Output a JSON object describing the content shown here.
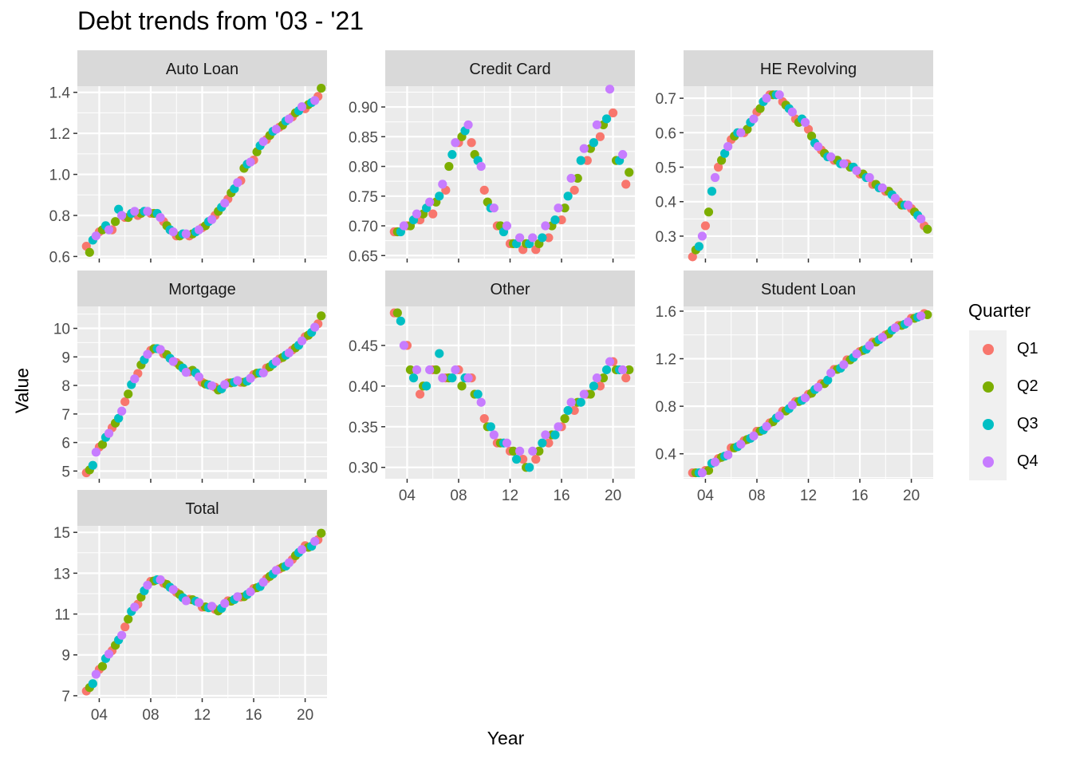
{
  "chart_data": {
    "type": "scatter",
    "title": "Debt trends from '03 - '21",
    "xlabel": "Year",
    "ylabel": "Value",
    "legend": {
      "title": "Quarter",
      "position": "right"
    },
    "series_colors": {
      "Q1": "#F8766D",
      "Q2": "#7CAE00",
      "Q3": "#00BFC4",
      "Q4": "#C77CFF"
    },
    "panel_background": "#EBEBEB",
    "strip_background": "#D9D9D9",
    "grid": true,
    "x_ticks": [
      4,
      8,
      12,
      16,
      20
    ],
    "x_tick_labels": [
      "04",
      "08",
      "12",
      "16",
      "20"
    ],
    "xlim": [
      2.3,
      21.7
    ],
    "years": [
      3,
      4,
      5,
      6,
      7,
      8,
      9,
      10,
      11,
      12,
      13,
      14,
      15,
      16,
      17,
      18,
      19,
      20,
      21
    ],
    "facets": [
      {
        "name": "Auto Loan",
        "ylim": [
          0.59,
          1.43
        ],
        "y_ticks": [
          0.6,
          0.8,
          1.0,
          1.2,
          1.4
        ],
        "y_tick_labels": [
          "0.6",
          "0.8",
          "1.0",
          "1.2",
          "1.4"
        ],
        "series": [
          {
            "name": "Q1",
            "values": [
              0.65,
              0.72,
              0.73,
              0.79,
              0.8,
              0.81,
              0.77,
              0.7,
              0.7,
              0.74,
              0.8,
              0.88,
              0.97,
              1.07,
              1.17,
              1.23,
              1.28,
              1.32,
              1.38
            ]
          },
          {
            "name": "Q2",
            "values": [
              0.62,
              0.73,
              0.77,
              0.79,
              0.81,
              0.81,
              0.75,
              0.7,
              0.71,
              0.75,
              0.82,
              0.91,
              1.03,
              1.11,
              1.19,
              1.24,
              1.3,
              1.34,
              1.42
            ]
          },
          {
            "name": "Q3",
            "values": [
              0.68,
              0.75,
              0.83,
              0.81,
              0.82,
              0.81,
              0.73,
              0.71,
              0.72,
              0.77,
              0.84,
              0.93,
              1.05,
              1.14,
              1.21,
              1.26,
              1.31,
              1.35,
              null
            ]
          },
          {
            "name": "Q4",
            "values": [
              0.7,
              0.73,
              0.8,
              0.82,
              0.82,
              0.79,
              0.72,
              0.71,
              0.73,
              0.78,
              0.86,
              0.96,
              1.06,
              1.16,
              1.22,
              1.27,
              1.33,
              1.36,
              null
            ]
          }
        ]
      },
      {
        "name": "Credit Card",
        "ylim": [
          0.645,
          0.935
        ],
        "y_ticks": [
          0.65,
          0.7,
          0.75,
          0.8,
          0.85,
          0.9
        ],
        "y_tick_labels": [
          "0.65",
          "0.70",
          "0.75",
          "0.80",
          "0.85",
          "0.90"
        ],
        "series": [
          {
            "name": "Q1",
            "values": [
              0.69,
              0.7,
              0.71,
              0.72,
              0.76,
              0.84,
              0.84,
              0.76,
              0.7,
              0.67,
              0.66,
              0.66,
              0.68,
              0.71,
              0.76,
              0.81,
              0.85,
              0.89,
              0.77
            ]
          },
          {
            "name": "Q2",
            "values": [
              0.69,
              0.7,
              0.72,
              0.74,
              0.8,
              0.85,
              0.82,
              0.74,
              0.7,
              0.67,
              0.67,
              0.67,
              0.7,
              0.73,
              0.78,
              0.83,
              0.87,
              0.81,
              0.79
            ]
          },
          {
            "name": "Q3",
            "values": [
              0.69,
              0.71,
              0.73,
              0.75,
              0.82,
              0.86,
              0.81,
              0.73,
              0.69,
              0.67,
              0.67,
              0.68,
              0.71,
              0.75,
              0.81,
              0.84,
              0.88,
              0.81,
              null
            ]
          },
          {
            "name": "Q4",
            "values": [
              0.7,
              0.72,
              0.74,
              0.77,
              0.84,
              0.87,
              0.8,
              0.73,
              0.7,
              0.68,
              0.68,
              0.7,
              0.73,
              0.78,
              0.83,
              0.87,
              0.93,
              0.82,
              null
            ]
          }
        ]
      },
      {
        "name": "HE Revolving",
        "ylim": [
          0.235,
          0.735
        ],
        "y_ticks": [
          0.3,
          0.4,
          0.5,
          0.6,
          0.7
        ],
        "y_tick_labels": [
          "0.3",
          "0.4",
          "0.5",
          "0.6",
          "0.7"
        ],
        "series": [
          {
            "name": "Q1",
            "values": [
              0.24,
              0.33,
              0.5,
              0.58,
              0.6,
              0.66,
              0.71,
              0.69,
              0.64,
              0.61,
              0.55,
              0.52,
              0.51,
              0.48,
              0.45,
              0.43,
              0.4,
              0.38,
              0.33
            ]
          },
          {
            "name": "Q2",
            "values": [
              0.26,
              0.37,
              0.52,
              0.59,
              0.61,
              0.67,
              0.71,
              0.68,
              0.63,
              0.59,
              0.54,
              0.52,
              0.5,
              0.48,
              0.45,
              0.43,
              0.39,
              0.37,
              0.32
            ]
          },
          {
            "name": "Q3",
            "values": [
              0.27,
              0.43,
              0.54,
              0.6,
              0.63,
              0.69,
              0.71,
              0.67,
              0.64,
              0.57,
              0.53,
              0.51,
              0.5,
              0.47,
              0.44,
              0.42,
              0.39,
              0.36,
              null
            ]
          },
          {
            "name": "Q4",
            "values": [
              0.3,
              0.47,
              0.56,
              0.6,
              0.64,
              0.7,
              0.71,
              0.66,
              0.63,
              0.56,
              0.53,
              0.51,
              0.49,
              0.47,
              0.44,
              0.41,
              0.39,
              0.35,
              null
            ]
          }
        ]
      },
      {
        "name": "Mortgage",
        "ylim": [
          4.73,
          10.77
        ],
        "y_ticks": [
          5,
          6,
          7,
          8,
          9,
          10
        ],
        "y_tick_labels": [
          "5",
          "6",
          "7",
          "8",
          "9",
          "10"
        ],
        "series": [
          {
            "name": "Q1",
            "values": [
              4.94,
              5.84,
              6.52,
              7.43,
              8.42,
              9.23,
              9.11,
              8.8,
              8.48,
              8.11,
              7.94,
              8.09,
              8.11,
              8.38,
              8.61,
              8.93,
              9.24,
              9.71,
              10.16
            ]
          },
          {
            "name": "Q2",
            "values": [
              5.04,
              5.93,
              6.68,
              7.7,
              8.72,
              9.29,
              9.08,
              8.7,
              8.53,
              8.05,
              7.84,
              8.09,
              8.11,
              8.43,
              8.65,
              8.98,
              9.32,
              9.76,
              10.44
            ]
          },
          {
            "name": "Q3",
            "values": [
              5.2,
              6.18,
              6.85,
              8.03,
              8.9,
              9.29,
              8.95,
              8.61,
              8.44,
              8.02,
              7.88,
              8.11,
              8.15,
              8.44,
              8.75,
              9.06,
              9.41,
              9.86,
              null
            ]
          },
          {
            "name": "Q4",
            "values": [
              5.66,
              6.32,
              7.1,
              8.23,
              9.09,
              9.26,
              8.84,
              8.46,
              8.3,
              7.99,
              8.03,
              8.17,
              8.25,
              8.44,
              8.84,
              9.14,
              9.56,
              10.04,
              null
            ]
          }
        ]
      },
      {
        "name": "Other",
        "ylim": [
          0.286,
          0.498
        ],
        "y_ticks": [
          0.3,
          0.35,
          0.4,
          0.45
        ],
        "y_tick_labels": [
          "0.30",
          "0.35",
          "0.40",
          "0.45"
        ],
        "series": [
          {
            "name": "Q1",
            "values": [
              0.49,
              0.45,
              0.39,
              0.42,
              0.41,
              0.42,
              0.41,
              0.36,
              0.33,
              0.32,
              0.31,
              0.31,
              0.33,
              0.35,
              0.37,
              0.39,
              0.4,
              0.43,
              0.41
            ]
          },
          {
            "name": "Q2",
            "values": [
              0.49,
              0.42,
              0.4,
              0.42,
              0.41,
              0.4,
              0.39,
              0.35,
              0.33,
              0.32,
              0.3,
              0.32,
              0.34,
              0.36,
              0.38,
              0.39,
              0.41,
              0.42,
              0.42
            ]
          },
          {
            "name": "Q3",
            "values": [
              0.48,
              0.41,
              0.4,
              0.44,
              0.41,
              0.41,
              0.39,
              0.35,
              0.33,
              0.31,
              0.3,
              0.33,
              0.34,
              0.37,
              0.38,
              0.4,
              0.42,
              0.42,
              null
            ]
          },
          {
            "name": "Q4",
            "values": [
              0.45,
              0.42,
              0.42,
              0.41,
              0.42,
              0.41,
              0.38,
              0.34,
              0.33,
              0.32,
              0.32,
              0.34,
              0.35,
              0.38,
              0.39,
              0.41,
              0.43,
              0.42,
              null
            ]
          }
        ]
      },
      {
        "name": "Student Loan",
        "ylim": [
          0.19,
          1.64
        ],
        "y_ticks": [
          0.4,
          0.8,
          1.2,
          1.6
        ],
        "y_tick_labels": [
          "0.4",
          "0.8",
          "1.2",
          "1.6"
        ],
        "series": [
          {
            "name": "Q1",
            "values": [
              0.24,
              0.26,
              0.36,
              0.45,
              0.51,
              0.59,
              0.66,
              0.76,
              0.84,
              0.9,
              0.99,
              1.11,
              1.19,
              1.26,
              1.34,
              1.4,
              1.48,
              1.54,
              1.58
            ]
          },
          {
            "name": "Q2",
            "values": [
              0.24,
              0.26,
              0.37,
              0.45,
              0.52,
              0.59,
              0.67,
              0.76,
              0.84,
              0.91,
              0.99,
              1.11,
              1.19,
              1.27,
              1.34,
              1.41,
              1.48,
              1.54,
              1.57
            ]
          },
          {
            "name": "Q3",
            "values": [
              0.24,
              0.32,
              0.38,
              0.46,
              0.53,
              0.6,
              0.7,
              0.78,
              0.85,
              0.94,
              1.02,
              1.12,
              1.21,
              1.28,
              1.36,
              1.44,
              1.49,
              1.55,
              null
            ]
          },
          {
            "name": "Q4",
            "values": [
              0.24,
              0.33,
              0.39,
              0.48,
              0.55,
              0.63,
              0.72,
              0.81,
              0.87,
              0.96,
              1.08,
              1.15,
              1.24,
              1.31,
              1.38,
              1.46,
              1.51,
              1.56,
              null
            ]
          }
        ]
      },
      {
        "name": "Total",
        "ylim": [
          6.88,
          15.32
        ],
        "y_ticks": [
          7,
          9,
          11,
          13,
          15
        ],
        "y_tick_labels": [
          "7",
          "9",
          "11",
          "13",
          "15"
        ],
        "series": [
          {
            "name": "Q1",
            "values": [
              7.23,
              8.29,
              9.21,
              10.37,
              11.48,
              12.6,
              12.51,
              12.06,
              11.72,
              11.34,
              11.23,
              11.65,
              11.83,
              12.25,
              12.73,
              13.21,
              13.67,
              14.35,
              14.64
            ]
          },
          {
            "name": "Q2",
            "values": [
              7.4,
              8.44,
              9.47,
              10.75,
              11.83,
              12.62,
              12.45,
              11.96,
              11.7,
              11.35,
              11.15,
              11.63,
              11.85,
              12.29,
              12.84,
              13.29,
              13.86,
              14.27,
              14.96
            ]
          },
          {
            "name": "Q3",
            "values": [
              7.59,
              8.82,
              9.73,
              11.13,
              12.14,
              12.68,
              12.31,
              11.8,
              11.63,
              11.31,
              11.28,
              11.71,
              11.96,
              12.35,
              12.96,
              13.35,
              14.01,
              14.32,
              null
            ]
          },
          {
            "name": "Q4",
            "values": [
              8.05,
              9.04,
              9.96,
              11.34,
              12.41,
              12.68,
              12.2,
              11.65,
              11.56,
              11.38,
              11.52,
              11.85,
              12.09,
              12.56,
              13.14,
              13.51,
              14.16,
              14.56,
              null
            ]
          }
        ]
      }
    ]
  }
}
